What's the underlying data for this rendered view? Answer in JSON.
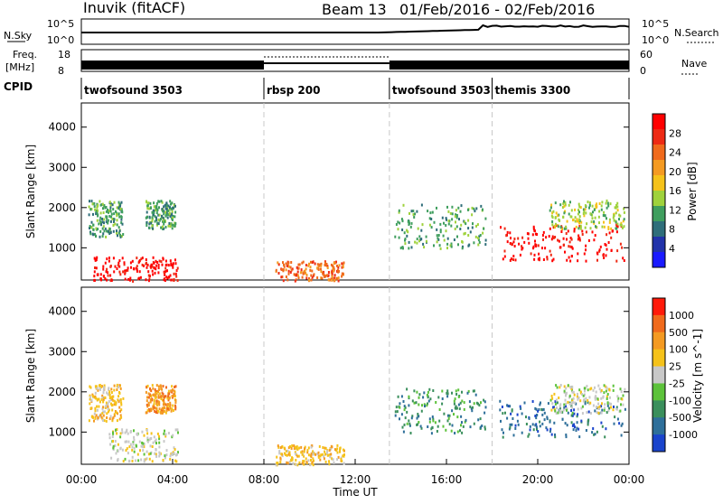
{
  "header": {
    "station": "Inuvik (fitACF)",
    "beam": "Beam 13",
    "date_range": "01/Feb/2016 - 02/Feb/2016"
  },
  "status_panels": {
    "nsky_label": "N.Sky",
    "nsky_ticks": [
      "10^5",
      "10^0"
    ],
    "nsearch_label": "N.Search",
    "nsearch_ticks": [
      "10^5",
      "10^0"
    ],
    "freq_label_1": "Freq.",
    "freq_label_2": "[MHz]",
    "freq_ticks": [
      "18",
      "8"
    ],
    "nave_label": "Nave",
    "nave_ticks": [
      "60",
      "0"
    ],
    "cpid_label": "CPID",
    "cpid_segments": [
      {
        "label": "twofsound 3503",
        "start_hour": 0.0,
        "end_hour": 8.0
      },
      {
        "label": "rbsp 200",
        "start_hour": 8.0,
        "end_hour": 13.5
      },
      {
        "label": "twofsound 3503",
        "start_hour": 13.5,
        "end_hour": 18.0
      },
      {
        "label": "themis 3300",
        "start_hour": 18.0,
        "end_hour": 24.0
      }
    ]
  },
  "chart_data": [
    {
      "type": "heatmap",
      "panel": "power",
      "ylabel": "Slant Range [km]",
      "yticks": [
        "1000",
        "2000",
        "3000",
        "4000"
      ],
      "ylim": [
        200,
        4600
      ],
      "xlim_hours": [
        0,
        24
      ],
      "colorbar_label": "Power [dB]",
      "colorbar_ticks": [
        "4",
        "8",
        "12",
        "16",
        "20",
        "24",
        "28"
      ],
      "colorbar_colors": [
        "#1a1aff",
        "#2233aa",
        "#2f6e7a",
        "#3f9e5e",
        "#9fd23c",
        "#f5c21a",
        "#f49a22",
        "#f06a1c",
        "#ee2a14",
        "#ff0000"
      ],
      "regions": [
        {
          "x": [
            0.3,
            1.8
          ],
          "y": [
            1300,
            2200
          ],
          "level": 3
        },
        {
          "x": [
            0.5,
            4.2
          ],
          "y": [
            200,
            800
          ],
          "level": 9
        },
        {
          "x": [
            2.8,
            4.1
          ],
          "y": [
            1500,
            2200
          ],
          "level": 3
        },
        {
          "x": [
            8.5,
            11.5
          ],
          "y": [
            200,
            700
          ],
          "level": 7
        },
        {
          "x": [
            13.7,
            17.7
          ],
          "y": [
            1000,
            2100
          ],
          "level": 3
        },
        {
          "x": [
            18.3,
            23.8
          ],
          "y": [
            700,
            1600
          ],
          "level": 9
        },
        {
          "x": [
            20.5,
            23.8
          ],
          "y": [
            1500,
            2200
          ],
          "level": 4
        }
      ]
    },
    {
      "type": "heatmap",
      "panel": "velocity",
      "ylabel": "Slant Range [km]",
      "yticks": [
        "1000",
        "2000",
        "3000",
        "4000"
      ],
      "ylim": [
        200,
        4600
      ],
      "xlim_hours": [
        0,
        24
      ],
      "xticks": [
        "00:00",
        "04:00",
        "08:00",
        "12:00",
        "16:00",
        "20:00",
        "00:00"
      ],
      "xlabel": "Time UT",
      "colorbar_label": "Velocity [m s^-1]",
      "colorbar_ticks": [
        "1000",
        "500",
        "100",
        "25",
        "-25",
        "-100",
        "-500",
        "-1000"
      ],
      "colorbar_colors": [
        "#1a44cc",
        "#2e6f9a",
        "#3a8f5c",
        "#5cc23a",
        "#c8c8c8",
        "#f5c21a",
        "#f49a22",
        "#f06a1c",
        "#ff1a0a"
      ],
      "regions": [
        {
          "x": [
            0.3,
            1.8
          ],
          "y": [
            1300,
            2200
          ],
          "level": 5
        },
        {
          "x": [
            1.2,
            4.2
          ],
          "y": [
            300,
            1100
          ],
          "level": 4
        },
        {
          "x": [
            2.8,
            4.1
          ],
          "y": [
            1500,
            2200
          ],
          "level": 6
        },
        {
          "x": [
            8.5,
            11.5
          ],
          "y": [
            200,
            700
          ],
          "level": 5
        },
        {
          "x": [
            13.7,
            17.7
          ],
          "y": [
            1000,
            2100
          ],
          "level": 2
        },
        {
          "x": [
            18.3,
            23.8
          ],
          "y": [
            900,
            1800
          ],
          "level": 1
        },
        {
          "x": [
            20.5,
            23.8
          ],
          "y": [
            1500,
            2200
          ],
          "level": 4
        }
      ]
    }
  ]
}
